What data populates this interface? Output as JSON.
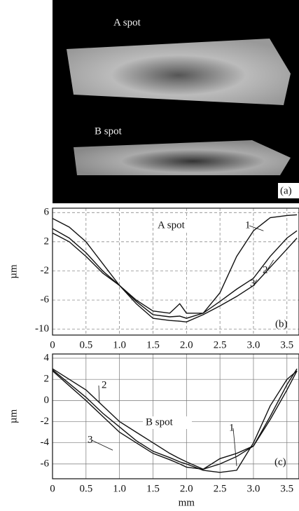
{
  "image_panel": {
    "labels": [
      "A spot",
      "B spot"
    ],
    "panel_label": "(a)"
  },
  "chart_data": [
    {
      "type": "line",
      "x_label": null,
      "y_label": "µm",
      "panel_label": "(b)",
      "annotation": "A spot",
      "xlim": [
        0,
        3.68
      ],
      "ylim": [
        -10.8,
        6.6
      ],
      "xticks": [
        0,
        0.5,
        {
          "value": 1,
          "label": "1.0"
        },
        1.5,
        {
          "value": 2,
          "label": "2.0"
        },
        2.5,
        {
          "value": 3,
          "label": "3.0"
        },
        3.5
      ],
      "yticks": [
        6,
        2,
        -2,
        -6,
        -10
      ],
      "grid": "dashed",
      "x": [
        0,
        0.25,
        0.5,
        0.75,
        1,
        1.25,
        1.5,
        1.75,
        1.9,
        2,
        2.25,
        2.5,
        2.75,
        3,
        3.25,
        3.5,
        3.65
      ],
      "series": [
        {
          "name": "1",
          "color": "#111",
          "values": [
            5.2,
            4,
            2,
            -1,
            -4,
            -6,
            -7.5,
            -7.8,
            -6.5,
            -7.8,
            -7.8,
            -5,
            0,
            3.5,
            5.3,
            5.6,
            5.7
          ]
        },
        {
          "name": "2",
          "color": "#111",
          "values": [
            3.8,
            2.5,
            0.5,
            -2,
            -4,
            -6.2,
            -8,
            -8.3,
            -8.2,
            -8.5,
            -7.8,
            -6.2,
            -4.5,
            -3,
            0,
            2.5,
            3.5
          ]
        },
        {
          "name": "3",
          "color": "#111",
          "values": [
            3.2,
            2,
            0,
            -2.3,
            -4,
            -6.5,
            -8.5,
            -8.8,
            -8.9,
            -9,
            -8,
            -6.8,
            -5.5,
            -4,
            -1.5,
            1,
            2.5
          ]
        }
      ]
    },
    {
      "type": "line",
      "x_label": "mm",
      "y_label": "µm",
      "panel_label": "(c)",
      "annotation": "B spot",
      "xlim": [
        0,
        3.68
      ],
      "ylim": [
        -7.4,
        4.4
      ],
      "xticks": [
        0,
        0.5,
        {
          "value": 1,
          "label": "1.0"
        },
        1.5,
        {
          "value": 2,
          "label": "2.0"
        },
        2.5,
        {
          "value": 3,
          "label": "3.0"
        },
        3.5
      ],
      "yticks": [
        4,
        2,
        0,
        -2,
        -4,
        -6
      ],
      "grid": "solid",
      "x": [
        0,
        0.25,
        0.5,
        0.75,
        1,
        1.25,
        1.5,
        1.75,
        1.9,
        2,
        2.25,
        2.5,
        2.75,
        3,
        3.25,
        3.5,
        3.65
      ],
      "series": [
        {
          "name": "1",
          "color": "#111",
          "values": [
            2.9,
            1.6,
            0.3,
            -1.2,
            -2.5,
            -3.8,
            -4.8,
            -5.4,
            -5.8,
            -6,
            -6.6,
            -6.8,
            -6.6,
            -4,
            -0.5,
            2,
            2.8
          ]
        },
        {
          "name": "2",
          "color": "#111",
          "values": [
            3,
            2,
            1,
            -0.5,
            -2,
            -3,
            -4,
            -5,
            -5.5,
            -5.8,
            -6.5,
            -6,
            -5.3,
            -4.3,
            -1.5,
            1.5,
            3
          ]
        },
        {
          "name": "3",
          "color": "#111",
          "values": [
            2.8,
            1.4,
            0,
            -1.5,
            -3,
            -4,
            -5,
            -5.6,
            -6,
            -6.3,
            -6.5,
            -5.5,
            -5,
            -4.3,
            -1.8,
            1,
            2.8
          ]
        }
      ]
    }
  ]
}
